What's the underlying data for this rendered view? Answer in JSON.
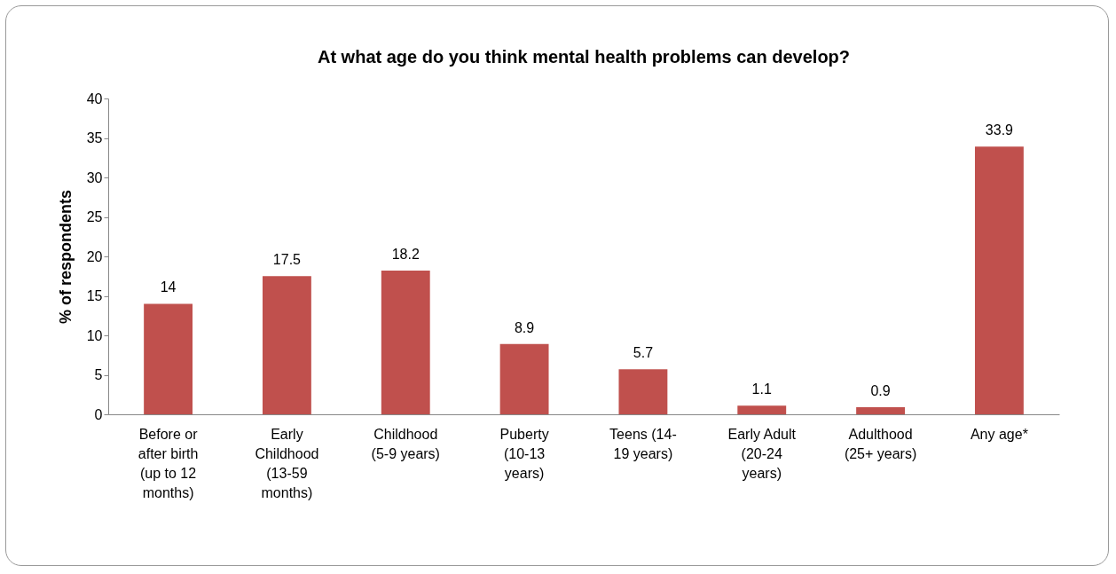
{
  "chart_data": {
    "type": "bar",
    "title": "At what age do you think mental health problems can develop?",
    "ylabel": "% of respondents",
    "categories": [
      "Before or after birth (up to 12 months)",
      "Early Childhood (13-59 months)",
      "Childhood (5-9 years)",
      "Puberty (10-13 years)",
      "Teens (14-19 years)",
      "Early Adult (20-24 years)",
      "Adulthood (25+ years)",
      "Any age*"
    ],
    "values": [
      14,
      17.5,
      18.2,
      8.9,
      5.7,
      1.1,
      0.9,
      33.9
    ],
    "color": "#c0504d",
    "ylim": [
      0,
      40
    ],
    "yticks": [
      0,
      5,
      10,
      15,
      20,
      25,
      30,
      35,
      40
    ],
    "grid": false,
    "data_labels": true
  }
}
